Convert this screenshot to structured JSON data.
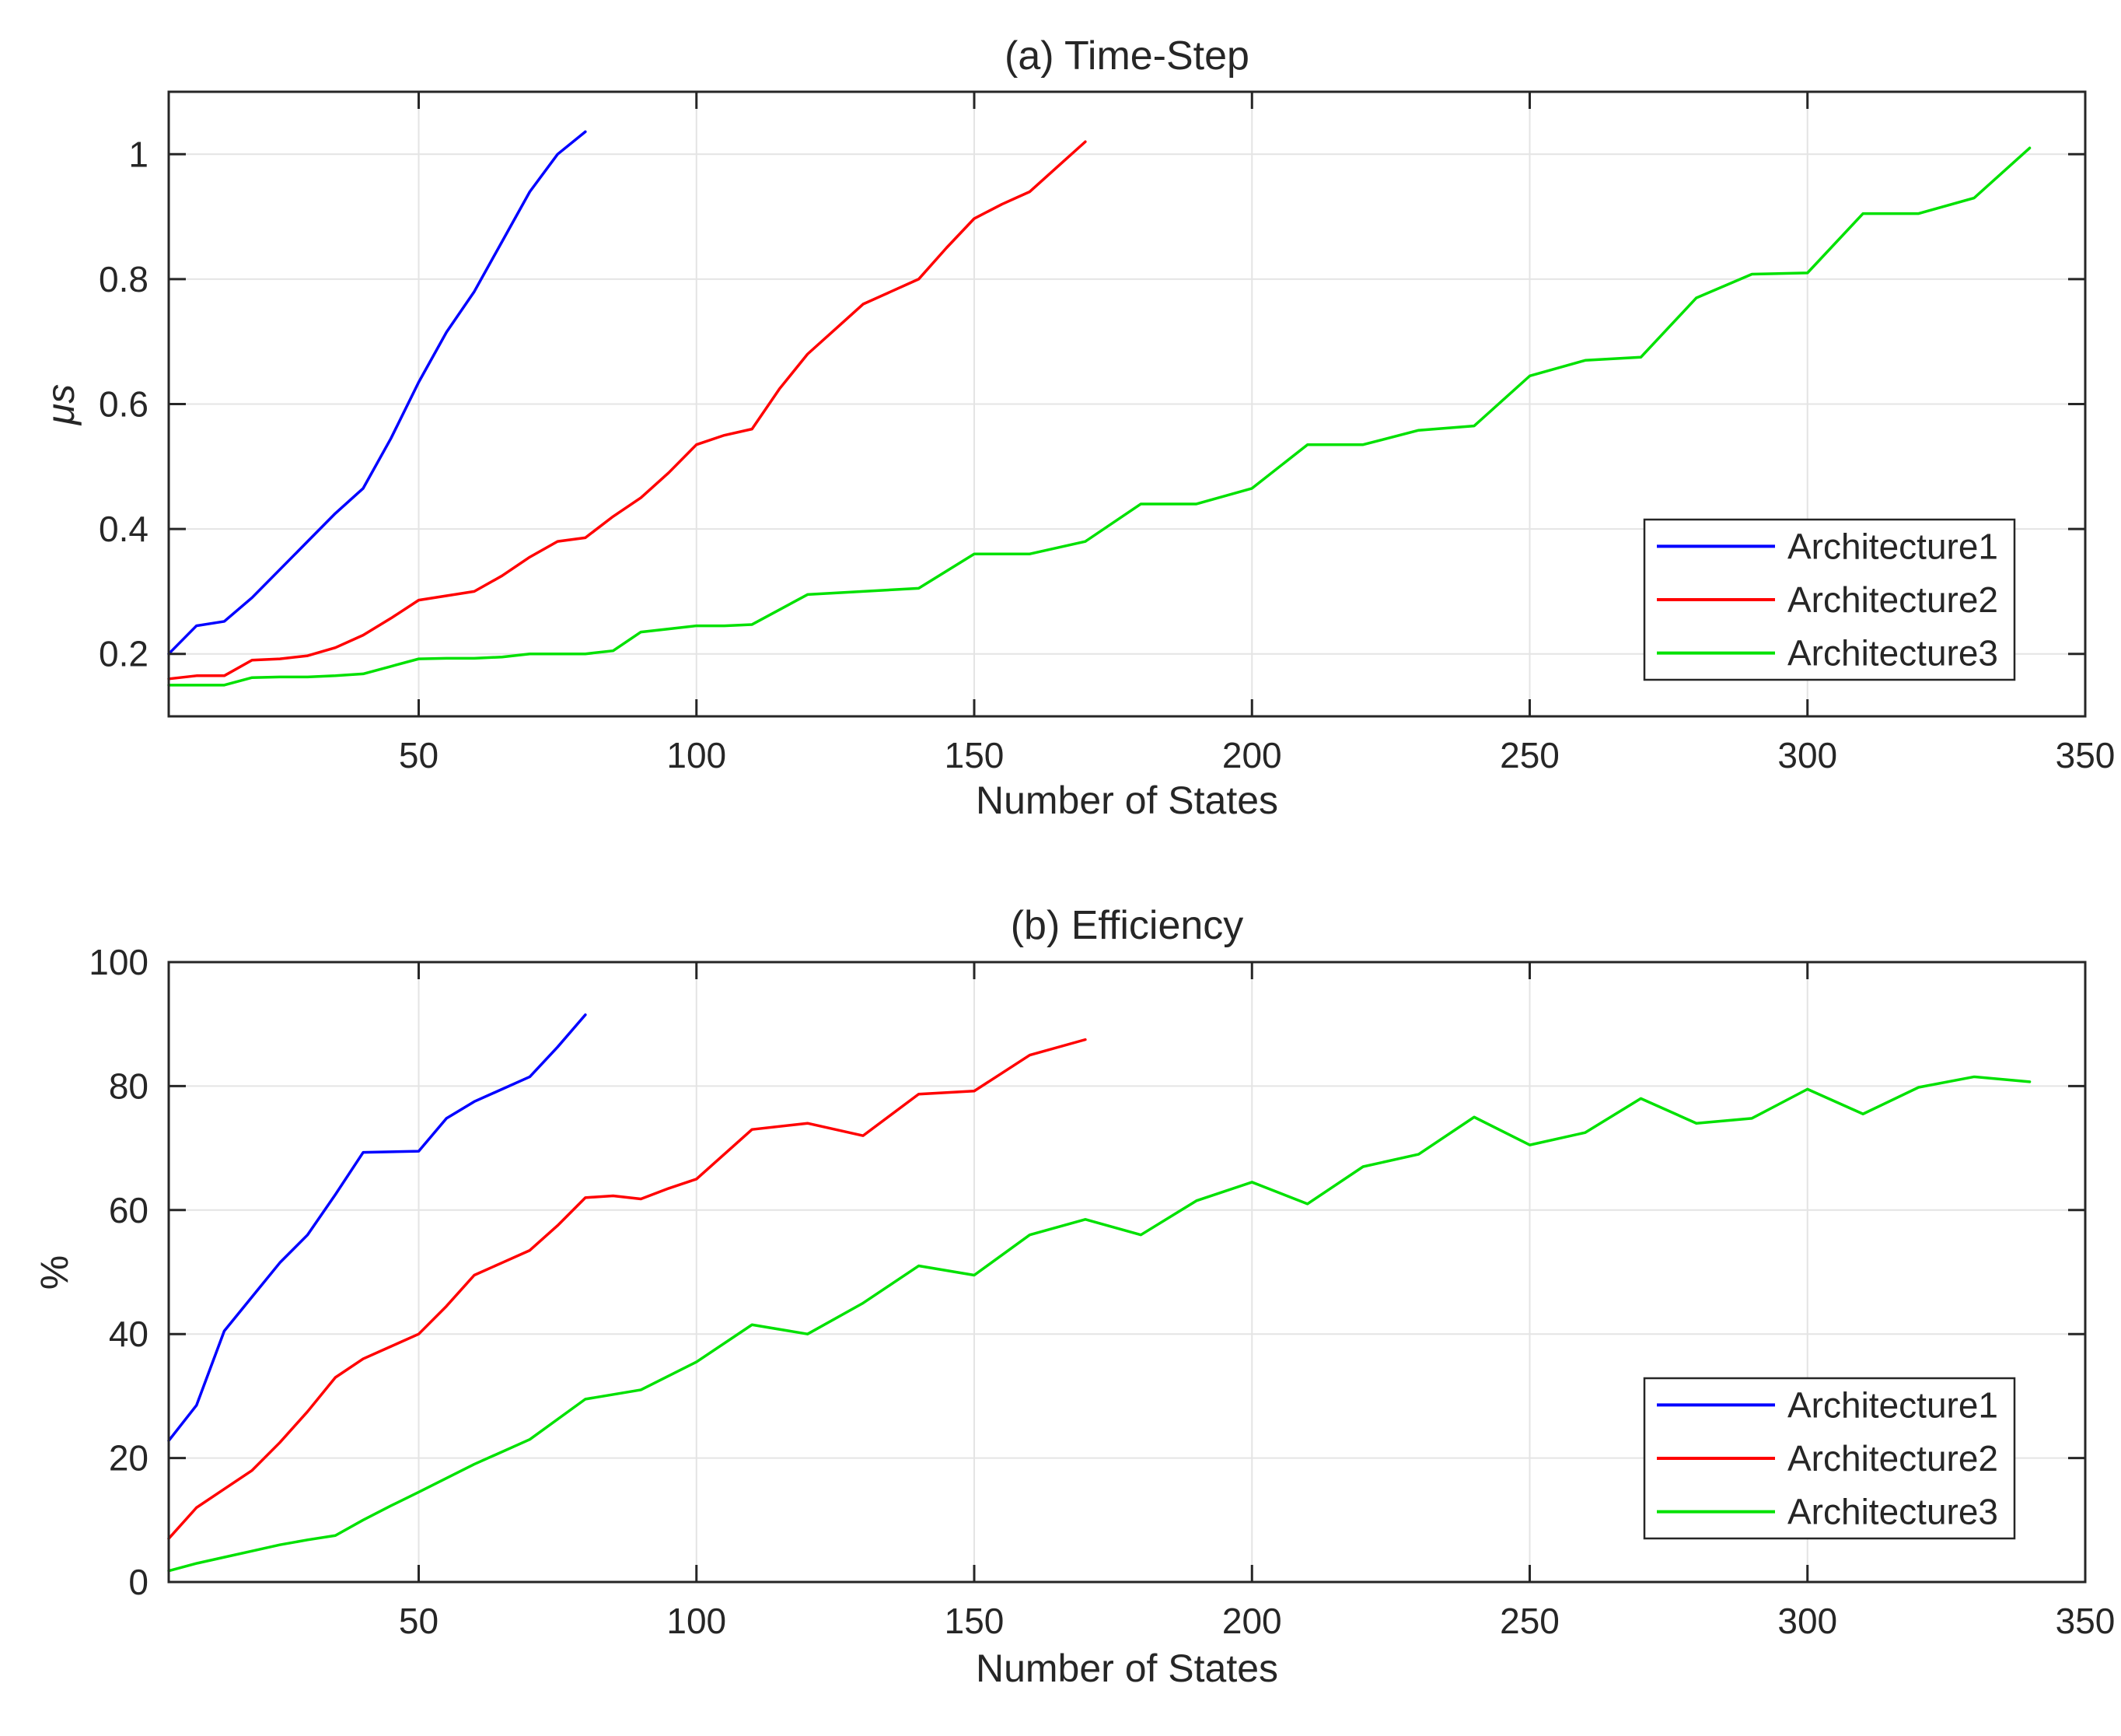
{
  "figure": {
    "background": "#FFFFFF",
    "axis_color": "#262626",
    "grid_color": "#E4E4E4",
    "tick_label_color": "#262626",
    "series_colors": {
      "Architecture1": "#0000FF",
      "Architecture2": "#FF0000",
      "Architecture3": "#00E100"
    }
  },
  "chart_data": [
    {
      "type": "line",
      "title": "(a) Time-Step",
      "xlabel": "Number of States",
      "ylabel": "μs",
      "xlim": [
        5,
        350
      ],
      "ylim": [
        0.1,
        1.1
      ],
      "xticks": [
        50,
        100,
        150,
        200,
        250,
        300,
        350
      ],
      "xticklabels": [
        "50",
        "100",
        "150",
        "200",
        "250",
        "300",
        "350"
      ],
      "yticks": [
        0.2,
        0.4,
        0.6,
        0.8,
        1
      ],
      "yticklabels": [
        "0.2",
        "0.4",
        "0.6",
        "0.8",
        "1"
      ],
      "grid": true,
      "legend_position": "right-lower-inside",
      "series": [
        {
          "name": "Architecture1",
          "color": "#0000FF",
          "x": [
            5,
            10,
            15,
            20,
            25,
            30,
            35,
            40,
            45,
            50,
            55,
            60,
            65,
            70,
            75,
            80
          ],
          "y": [
            0.2,
            0.245,
            0.252,
            0.29,
            0.335,
            0.38,
            0.425,
            0.465,
            0.545,
            0.635,
            0.715,
            0.78,
            0.86,
            0.94,
            1.0,
            1.036
          ]
        },
        {
          "name": "Architecture2",
          "color": "#FF0000",
          "x": [
            5,
            10,
            15,
            20,
            25,
            30,
            35,
            40,
            45,
            50,
            55,
            60,
            65,
            70,
            75,
            80,
            85,
            90,
            95,
            100,
            105,
            110,
            115,
            120,
            125,
            130,
            135,
            140,
            145,
            150,
            155,
            160,
            165,
            170
          ],
          "y": [
            0.16,
            0.165,
            0.165,
            0.19,
            0.192,
            0.197,
            0.21,
            0.23,
            0.257,
            0.286,
            0.293,
            0.3,
            0.325,
            0.355,
            0.38,
            0.386,
            0.42,
            0.45,
            0.49,
            0.535,
            0.55,
            0.56,
            0.625,
            0.68,
            0.72,
            0.76,
            0.78,
            0.8,
            0.85,
            0.897,
            0.92,
            0.94,
            0.98,
            1.02
          ]
        },
        {
          "name": "Architecture3",
          "color": "#00E100",
          "x": [
            5,
            10,
            15,
            20,
            25,
            30,
            35,
            40,
            45,
            50,
            55,
            60,
            65,
            70,
            75,
            80,
            85,
            90,
            95,
            100,
            105,
            110,
            120,
            130,
            140,
            150,
            160,
            170,
            180,
            190,
            200,
            210,
            220,
            230,
            240,
            250,
            260,
            270,
            280,
            290,
            300,
            310,
            320,
            330,
            340
          ],
          "y": [
            0.15,
            0.15,
            0.15,
            0.162,
            0.163,
            0.163,
            0.165,
            0.168,
            0.18,
            0.192,
            0.193,
            0.193,
            0.195,
            0.2,
            0.2,
            0.2,
            0.205,
            0.235,
            0.24,
            0.245,
            0.245,
            0.247,
            0.295,
            0.3,
            0.305,
            0.36,
            0.36,
            0.38,
            0.44,
            0.44,
            0.465,
            0.535,
            0.535,
            0.558,
            0.565,
            0.645,
            0.67,
            0.675,
            0.77,
            0.808,
            0.81,
            0.905,
            0.905,
            0.93,
            1.01
          ]
        }
      ]
    },
    {
      "type": "line",
      "title": "(b) Efficiency",
      "xlabel": "Number of States",
      "ylabel": "%",
      "xlim": [
        5,
        350
      ],
      "ylim": [
        0,
        100
      ],
      "xticks": [
        50,
        100,
        150,
        200,
        250,
        300,
        350
      ],
      "xticklabels": [
        "50",
        "100",
        "150",
        "200",
        "250",
        "300",
        "350"
      ],
      "yticks": [
        0,
        20,
        40,
        60,
        80,
        100
      ],
      "yticklabels": [
        "0",
        "20",
        "40",
        "60",
        "80",
        "100"
      ],
      "grid": true,
      "legend_position": "right-lower-inside",
      "series": [
        {
          "name": "Architecture1",
          "color": "#0000FF",
          "x": [
            5,
            10,
            15,
            20,
            25,
            30,
            35,
            40,
            45,
            50,
            55,
            60,
            65,
            70,
            75,
            80
          ],
          "y": [
            22.8,
            28.5,
            40.5,
            46,
            51.5,
            56,
            62.5,
            69.3,
            69.4,
            69.5,
            74.8,
            77.5,
            79.5,
            81.5,
            86.3,
            91.5
          ]
        },
        {
          "name": "Architecture2",
          "color": "#FF0000",
          "x": [
            5,
            10,
            15,
            20,
            25,
            30,
            35,
            40,
            45,
            50,
            55,
            60,
            65,
            70,
            75,
            80,
            85,
            90,
            95,
            100,
            110,
            120,
            130,
            140,
            150,
            160,
            170
          ],
          "y": [
            7,
            12,
            15,
            18,
            22.5,
            27.5,
            33,
            36,
            38,
            40,
            44.5,
            49.5,
            51.5,
            53.5,
            57.5,
            62,
            62.3,
            61.8,
            63.5,
            65,
            73,
            74,
            72,
            78.7,
            79.2,
            85,
            87.5
          ]
        },
        {
          "name": "Architecture3",
          "color": "#00E100",
          "x": [
            5,
            10,
            15,
            20,
            25,
            30,
            35,
            40,
            45,
            50,
            60,
            70,
            80,
            90,
            100,
            110,
            120,
            130,
            140,
            150,
            160,
            170,
            180,
            190,
            200,
            210,
            220,
            230,
            240,
            250,
            260,
            270,
            280,
            290,
            300,
            310,
            320,
            330,
            340
          ],
          "y": [
            1.8,
            3,
            4,
            5,
            6,
            6.8,
            7.5,
            10,
            12.3,
            14.5,
            19,
            23,
            29.5,
            31,
            35.5,
            41.5,
            40,
            45,
            51,
            49.5,
            56,
            58.5,
            56,
            61.5,
            64.5,
            61,
            67,
            69,
            75,
            70.5,
            72.5,
            78,
            74,
            74.8,
            79.5,
            75.5,
            79.8,
            81.5,
            80.7
          ]
        }
      ]
    }
  ]
}
